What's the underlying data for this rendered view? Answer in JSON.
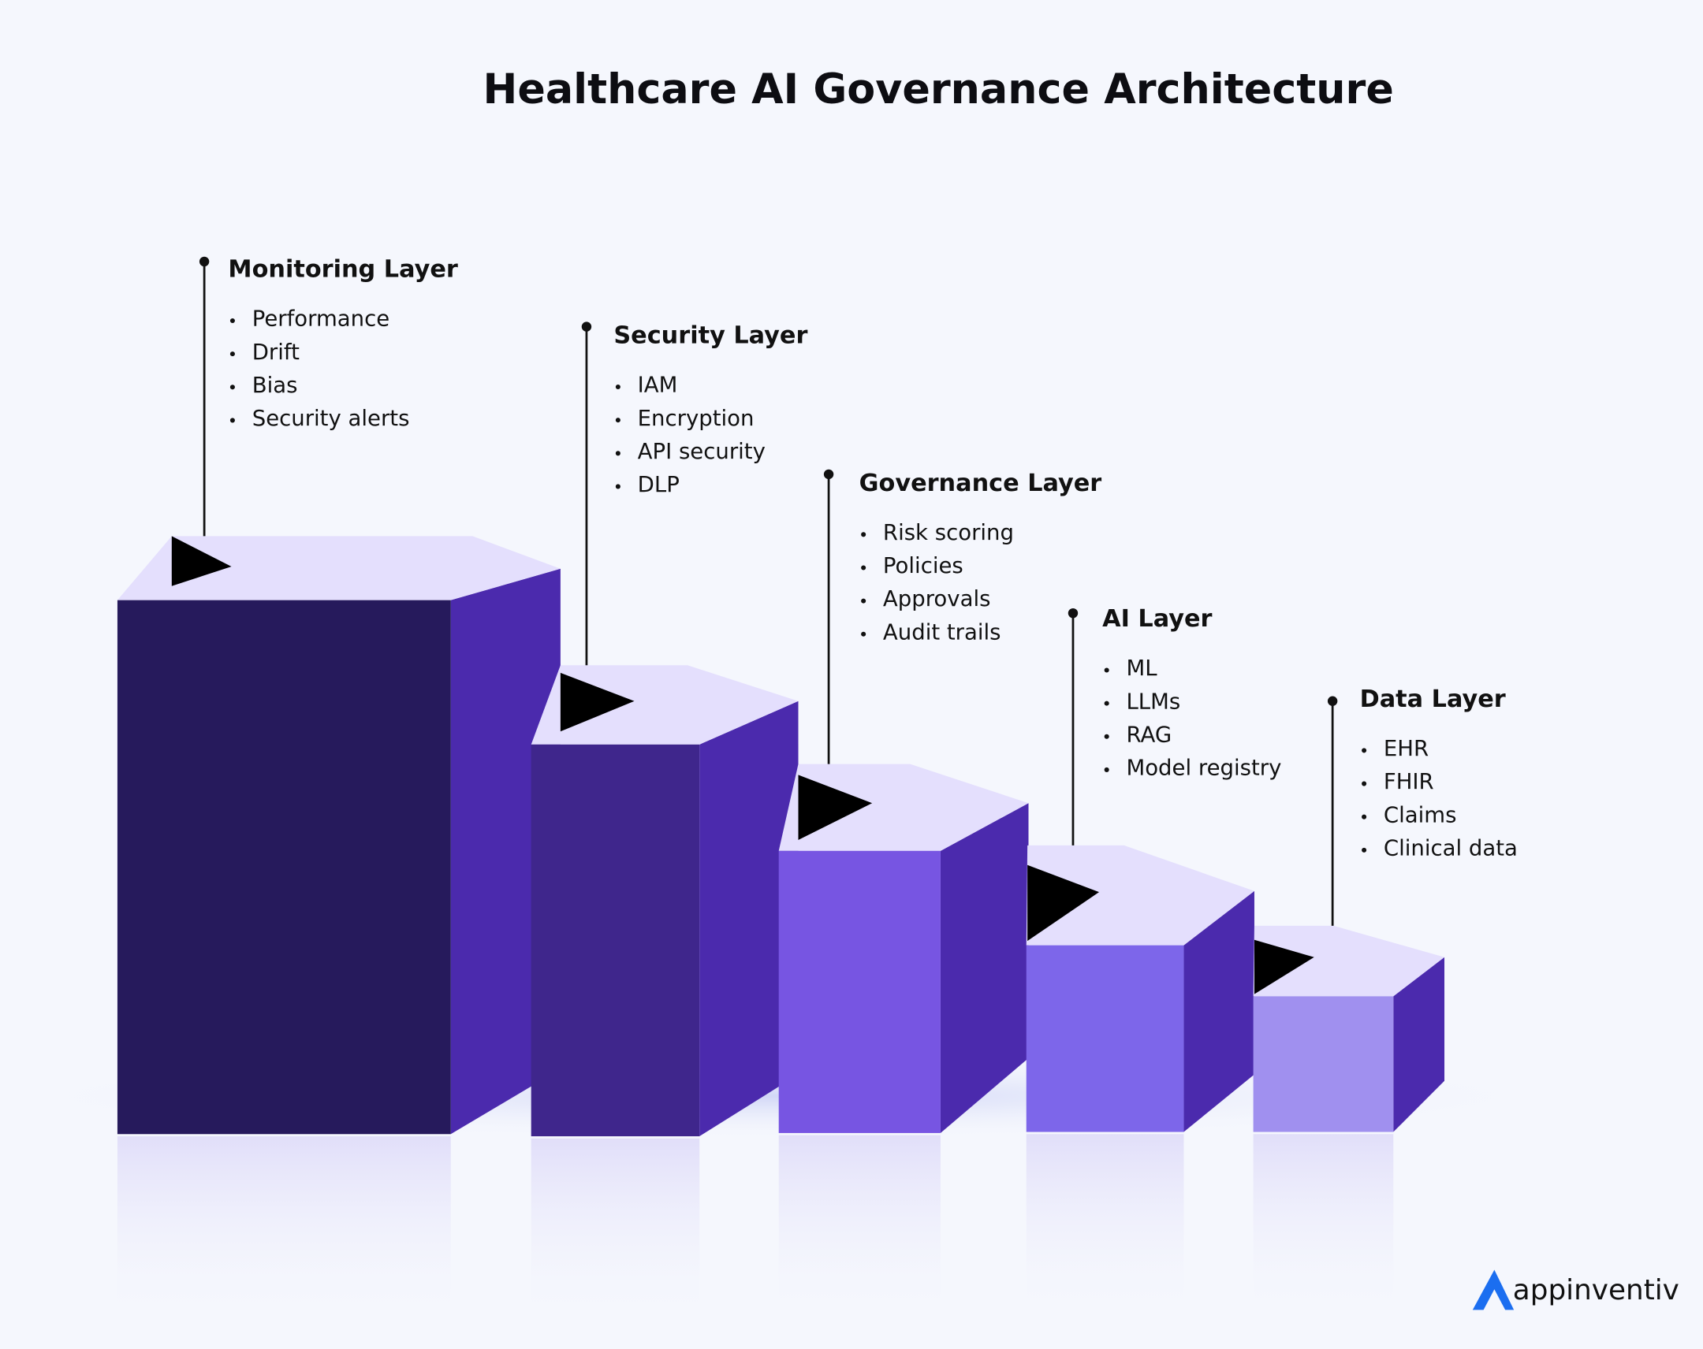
{
  "header": {
    "title": "Healthcare AI Governance Architecture"
  },
  "layers": [
    {
      "name": "Monitoring Layer",
      "items": [
        "Performance",
        "Drift",
        "Bias",
        "Security alerts"
      ]
    },
    {
      "name": "Security Layer",
      "items": [
        "IAM",
        "Encryption",
        "API security",
        "DLP"
      ]
    },
    {
      "name": "Governance Layer",
      "items": [
        "Risk scoring",
        "Policies",
        "Approvals",
        "Audit trails"
      ]
    },
    {
      "name": "AI Layer",
      "items": [
        "ML",
        "LLMs",
        "RAG",
        "Model registry"
      ]
    },
    {
      "name": "Data Layer",
      "items": [
        "EHR",
        "FHIR",
        "Claims",
        "Clinical data"
      ]
    }
  ],
  "logo": {
    "text": "appinventiv"
  }
}
